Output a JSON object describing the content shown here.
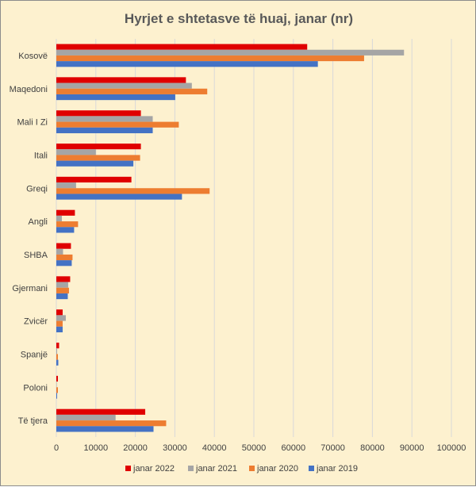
{
  "chart_data": {
    "type": "bar",
    "orientation": "horizontal",
    "title": "Hyrjet e shtetasve të huaj, janar (nr)",
    "categories": [
      "Kosovë",
      "Maqedoni",
      "Mali I Zi",
      "Itali",
      "Greqi",
      "Angli",
      "SHBA",
      "Gjermani",
      "Zvicër",
      "Spanjë",
      "Poloni",
      "Të tjera"
    ],
    "series": [
      {
        "name": "janar 2022",
        "color": "#e00000",
        "values": [
          63500,
          32800,
          21400,
          21400,
          19000,
          4700,
          3700,
          3500,
          1600,
          700,
          400,
          22500
        ]
      },
      {
        "name": "janar 2021",
        "color": "#a5a5a5",
        "values": [
          88000,
          34300,
          24400,
          10000,
          5000,
          1400,
          1700,
          3000,
          2400,
          200,
          100,
          15000
        ]
      },
      {
        "name": "janar 2020",
        "color": "#ed7d31",
        "values": [
          77900,
          38200,
          31000,
          21200,
          38800,
          5500,
          4100,
          3200,
          1600,
          400,
          400,
          27800
        ]
      },
      {
        "name": "janar 2019",
        "color": "#4472c4",
        "values": [
          66200,
          30100,
          24400,
          19500,
          31800,
          4500,
          3900,
          2900,
          1600,
          500,
          200,
          24600
        ]
      }
    ],
    "xlim": [
      0,
      100000
    ],
    "xticks": [
      0,
      10000,
      20000,
      30000,
      40000,
      50000,
      60000,
      70000,
      80000,
      90000,
      100000
    ],
    "legend_position": "bottom",
    "grid": true
  }
}
